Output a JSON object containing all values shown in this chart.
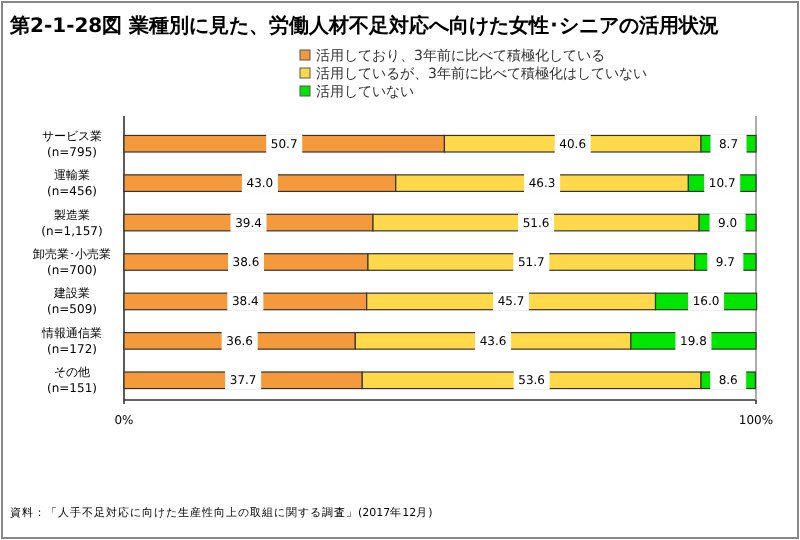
{
  "chart_data": {
    "type": "bar",
    "orientation": "horizontal",
    "stacked": true,
    "title": "第2-1-28図 業種別に見た、労働人材不足対応へ向けた女性･シニアの活用状況",
    "categories": [
      "サービス業\n(n=795)",
      "運輸業\n(n=456)",
      "製造業\n(n=1,157)",
      "卸売業･小売業\n(n=700)",
      "建設業\n(n=509)",
      "情報通信業\n(n=172)",
      "その他\n(n=151)"
    ],
    "series": [
      {
        "name": "活用しており、3年前に比べて積極化している",
        "color": "#f59a3c",
        "values": [
          50.7,
          43.0,
          39.4,
          38.6,
          38.4,
          36.6,
          37.7
        ],
        "value_labels": [
          "50.7",
          "43.0",
          "39.4",
          "38.6",
          "38.4",
          "36.6",
          "37.7"
        ]
      },
      {
        "name": "活用しているが、3年前に比べて積極化はしていない",
        "color": "#ffd94a",
        "values": [
          40.6,
          46.3,
          51.6,
          51.7,
          45.7,
          43.6,
          53.6
        ],
        "value_labels": [
          "40.6",
          "46.3",
          "51.6",
          "51.7",
          "45.7",
          "43.6",
          "53.6"
        ]
      },
      {
        "name": "活用していない",
        "color": "#00e600",
        "values": [
          8.7,
          10.7,
          9.0,
          9.7,
          16.0,
          19.8,
          8.6
        ],
        "value_labels": [
          "8.7",
          "10.7",
          "9.0",
          "9.7",
          "16.0",
          "19.8",
          "8.6"
        ]
      }
    ],
    "xlim": [
      0,
      100
    ],
    "xticks": [
      {
        "value": 0,
        "label": "0%"
      },
      {
        "value": 100,
        "label": "100%"
      }
    ],
    "legend": "top",
    "grid": false,
    "annotations": [
      "資料：「人手不足対応に向けた生産性向上の取組に関する調査」(2017年12月)"
    ]
  }
}
